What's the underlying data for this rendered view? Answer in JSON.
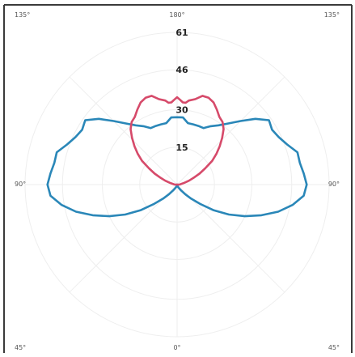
{
  "chart_data": {
    "type": "polar-line",
    "angle_labels": [
      {
        "text": "135°",
        "pos": "top-left"
      },
      {
        "text": "180°",
        "pos": "top-center"
      },
      {
        "text": "135°",
        "pos": "top-right"
      },
      {
        "text": "90°",
        "pos": "middle-left"
      },
      {
        "text": "90°",
        "pos": "middle-right"
      },
      {
        "text": "45°",
        "pos": "bottom-left"
      },
      {
        "text": "0°",
        "pos": "bottom-center"
      },
      {
        "text": "45°",
        "pos": "bottom-right"
      }
    ],
    "radial_ticks": [
      15,
      30,
      46,
      61
    ],
    "rmax": 61,
    "grid": true,
    "series": [
      {
        "color": "#2a87b8",
        "points": [
          [
            0,
            27
          ],
          [
            5,
            27
          ],
          [
            10,
            25
          ],
          [
            15,
            25
          ],
          [
            20,
            25
          ],
          [
            25,
            25
          ],
          [
            30,
            27
          ],
          [
            35,
            29
          ],
          [
            40,
            32
          ],
          [
            45,
            36
          ],
          [
            50,
            41
          ],
          [
            55,
            45
          ],
          [
            60,
            44
          ],
          [
            65,
            45
          ],
          [
            70,
            47
          ],
          [
            75,
            50
          ],
          [
            80,
            50
          ],
          [
            85,
            51
          ],
          [
            90,
            52
          ],
          [
            95,
            51
          ],
          [
            100,
            47
          ],
          [
            105,
            42
          ],
          [
            110,
            36
          ],
          [
            115,
            30
          ],
          [
            120,
            24
          ],
          [
            125,
            18
          ],
          [
            130,
            12
          ],
          [
            135,
            8
          ],
          [
            140,
            5
          ],
          [
            145,
            3
          ],
          [
            150,
            2
          ],
          [
            160,
            1
          ],
          [
            170,
            0
          ],
          [
            180,
            0
          ]
        ]
      },
      {
        "color": "#d64a6a",
        "points": [
          [
            0,
            35
          ],
          [
            2,
            34
          ],
          [
            4,
            33
          ],
          [
            6,
            33
          ],
          [
            8,
            34
          ],
          [
            12,
            35
          ],
          [
            16,
            37
          ],
          [
            20,
            37
          ],
          [
            24,
            36
          ],
          [
            28,
            34
          ],
          [
            32,
            32
          ],
          [
            36,
            31
          ],
          [
            40,
            29
          ],
          [
            44,
            26
          ],
          [
            48,
            23
          ],
          [
            52,
            20
          ],
          [
            56,
            17
          ],
          [
            60,
            13
          ],
          [
            64,
            10
          ],
          [
            68,
            7
          ],
          [
            72,
            5
          ],
          [
            76,
            3
          ],
          [
            80,
            2
          ],
          [
            90,
            1
          ],
          [
            180,
            0
          ]
        ]
      }
    ]
  }
}
